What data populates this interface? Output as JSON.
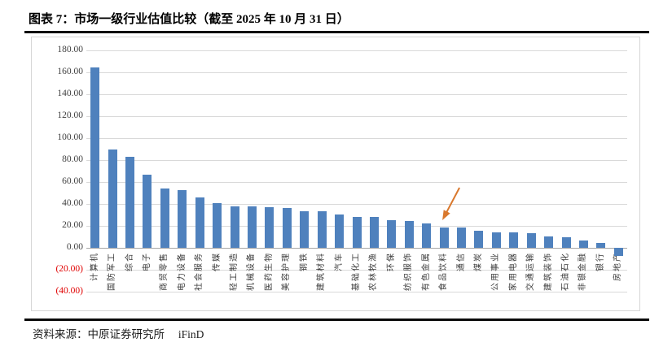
{
  "header": {
    "title": "图表 7：市场一级行业估值比较（截至 2025 年 10 月 31 日）"
  },
  "footer": {
    "source": "资料来源：中原证券研究所　 iFinD"
  },
  "chart_data": {
    "type": "bar",
    "title": "市场一级行业估值比较（截至 2025 年 10 月 31 日）",
    "xlabel": "",
    "ylabel": "",
    "ylim": [
      -40,
      180
    ],
    "grid": true,
    "legend": "none",
    "bar_color": "#4F81BD",
    "gridline_color": "#D9D9D9",
    "axis_line_color": "#A6A6A6",
    "negative_tick_color": "#E00000",
    "yticks": [
      {
        "value": 180,
        "label": "180.00"
      },
      {
        "value": 160,
        "label": "160.00"
      },
      {
        "value": 140,
        "label": "140.00"
      },
      {
        "value": 120,
        "label": "120.00"
      },
      {
        "value": 100,
        "label": "100.00"
      },
      {
        "value": 80,
        "label": "80.00"
      },
      {
        "value": 60,
        "label": "60.00"
      },
      {
        "value": 40,
        "label": "40.00"
      },
      {
        "value": 20,
        "label": "20.00"
      },
      {
        "value": 0,
        "label": "0.00"
      },
      {
        "value": -20,
        "label": "(20.00)",
        "negative": true
      },
      {
        "value": -40,
        "label": "(40.00)",
        "negative": true
      }
    ],
    "categories": [
      "计算机",
      "国防军工",
      "综合",
      "电子",
      "商贸零售",
      "电力设备",
      "社会服务",
      "传媒",
      "轻工制造",
      "机械设备",
      "医药生物",
      "美容护理",
      "钢铁",
      "建筑材料",
      "汽车",
      "基础化工",
      "农林牧渔",
      "环保",
      "纺织服饰",
      "有色金属",
      "食品饮料",
      "通信",
      "煤炭",
      "公用事业",
      "家用电器",
      "交通运输",
      "建筑装饰",
      "石油石化",
      "非银金融",
      "银行",
      "房地产"
    ],
    "values": [
      164.4,
      89.4,
      82.7,
      66.7,
      54.3,
      52.3,
      46.2,
      40.7,
      37.7,
      37.6,
      37.3,
      36.3,
      33.4,
      33.3,
      30.4,
      28.5,
      28.4,
      25.4,
      24.2,
      22.2,
      18.5,
      18.3,
      15.6,
      14.1,
      14.0,
      13.6,
      10.4,
      9.6,
      6.7,
      4.2,
      -7.4
    ],
    "annotation": {
      "type": "arrow",
      "target_category": "食品饮料",
      "color": "#D9782D"
    }
  }
}
